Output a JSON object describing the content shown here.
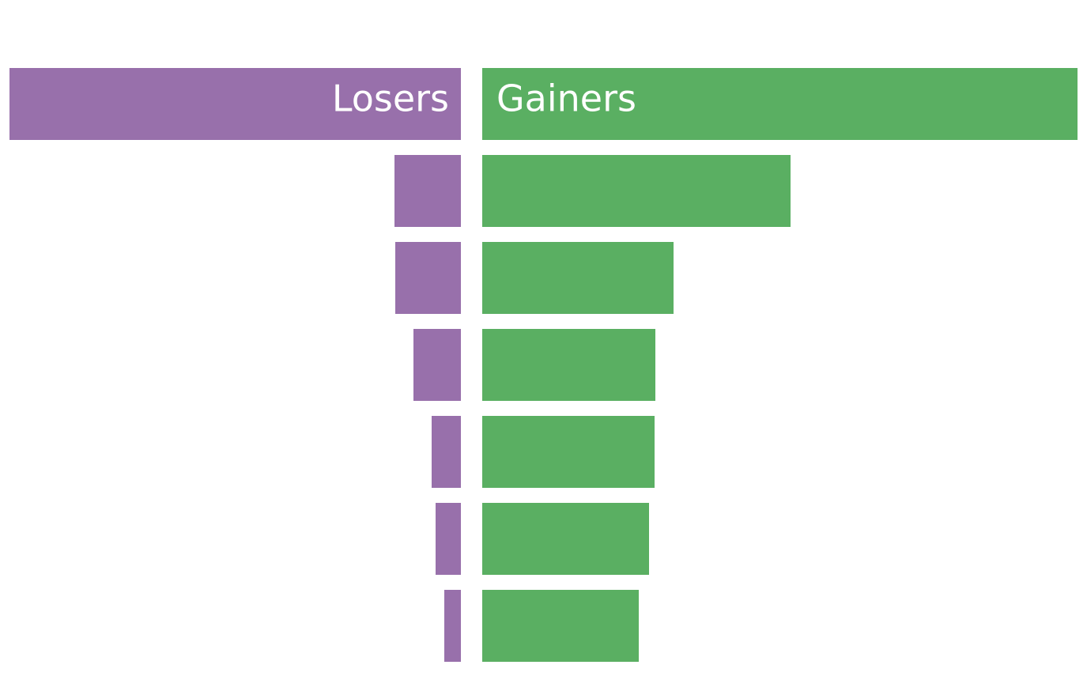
{
  "chart_data": {
    "type": "bar",
    "layout": "diverging",
    "title": "",
    "xlabel": "",
    "ylabel": "",
    "headers": {
      "losers_label": "Losers",
      "gainers_label": "Gainers"
    },
    "rows": 6,
    "losers": [
      84,
      83,
      60,
      37,
      32,
      21
    ],
    "gainers": [
      390,
      242,
      219,
      218,
      211,
      198
    ],
    "colors": {
      "losers": "#9870ab",
      "gainers": "#5aaf62"
    }
  }
}
